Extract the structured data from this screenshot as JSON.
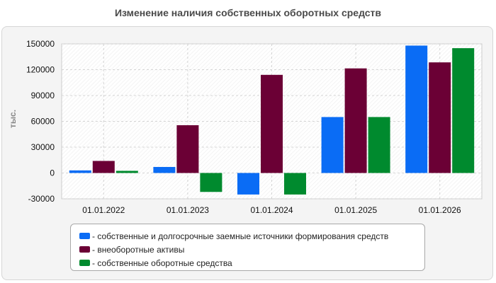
{
  "chart_data": {
    "type": "bar",
    "title": "Изменение наличия собственных оборотных средств",
    "ylabel": "тыс.",
    "xlabel": "",
    "categories": [
      "01.01.2022",
      "01.01.2023",
      "01.01.2024",
      "01.01.2025",
      "01.01.2026"
    ],
    "ylim": [
      -30000,
      150000
    ],
    "yticks": [
      150000,
      120000,
      90000,
      60000,
      30000,
      0,
      -30000
    ],
    "grid": true,
    "legend_position": "bottom",
    "series": [
      {
        "name": "- собственные и долгосрочные заемные источники формирования средств",
        "color": "#0a6cf5",
        "values": [
          3000,
          7000,
          -25000,
          65000,
          148000
        ]
      },
      {
        "name": "- внеоборотные активы",
        "color": "#6b0035",
        "values": [
          14000,
          55500,
          114000,
          121500,
          128500
        ]
      },
      {
        "name": "- собственные оборотные средства",
        "color": "#008a2e",
        "values": [
          2500,
          -22000,
          -25000,
          65000,
          145000
        ]
      }
    ]
  }
}
